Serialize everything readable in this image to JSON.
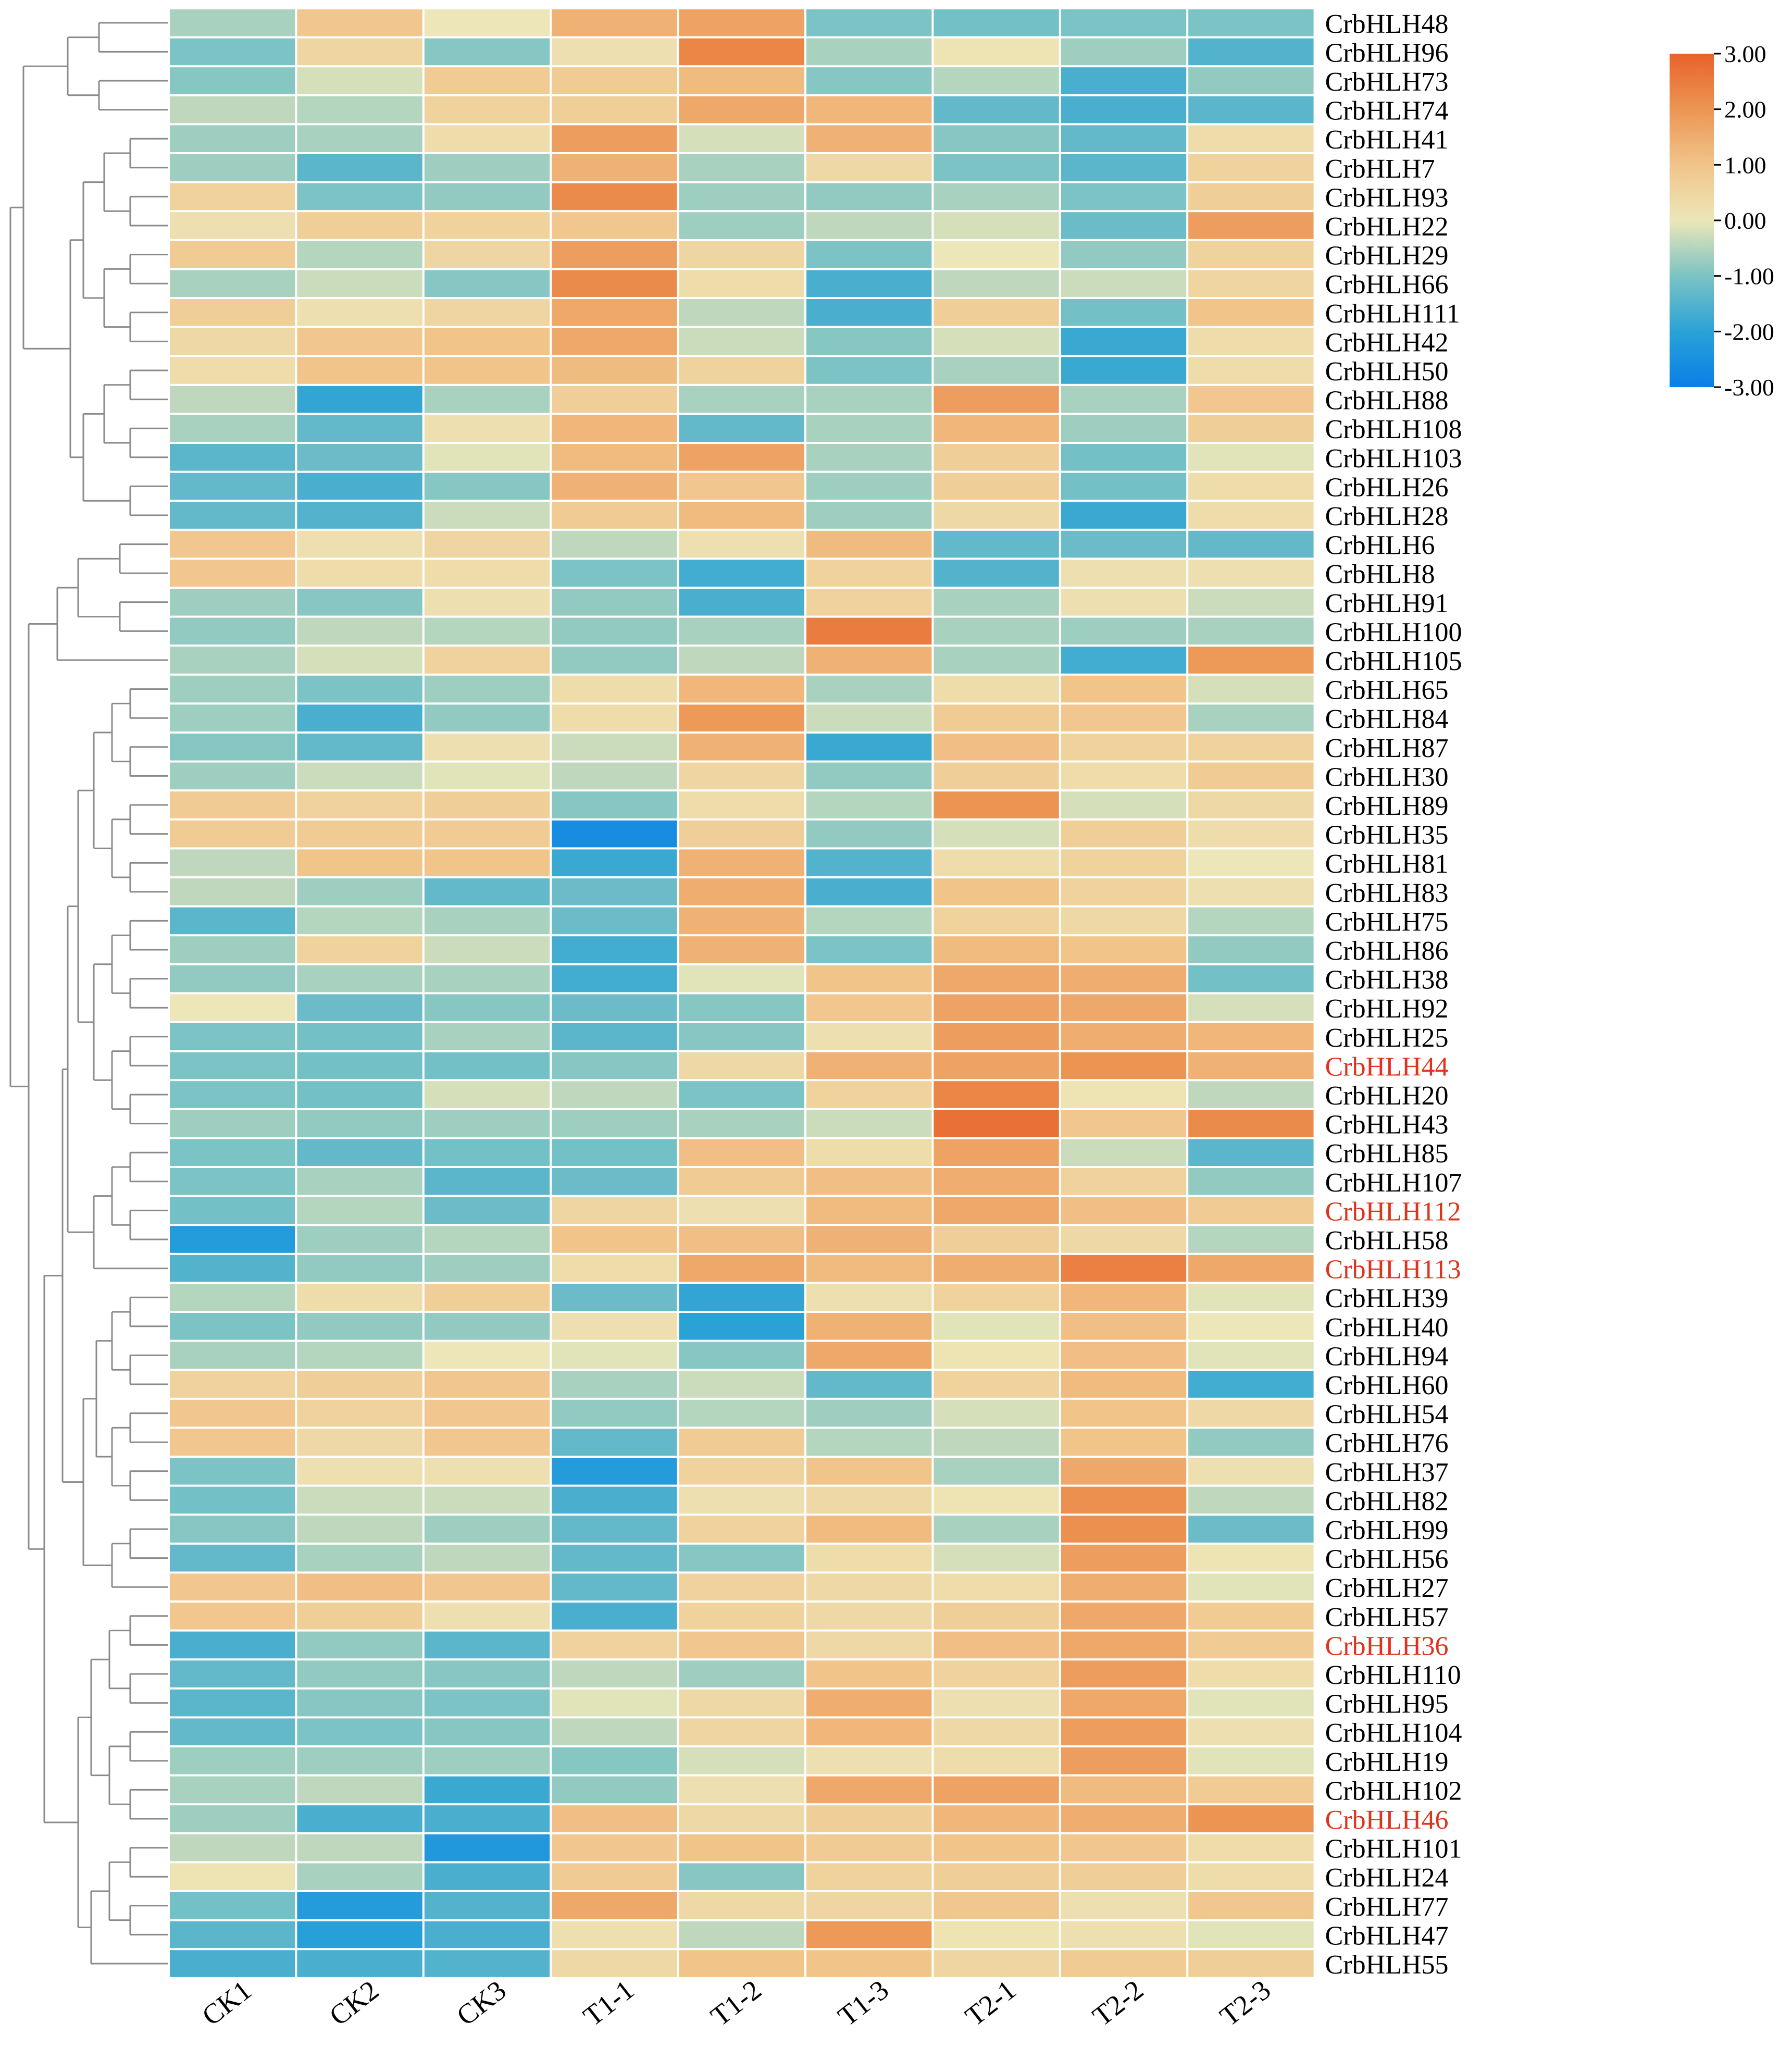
{
  "chart_data": {
    "type": "heatmap",
    "title": "",
    "columns": [
      "CK1",
      "CK2",
      "CK3",
      "T1-1",
      "T1-2",
      "T1-3",
      "T2-1",
      "T2-2",
      "T2-3"
    ],
    "rows": [
      {
        "gene": "CrbHLH48",
        "values": [
          -0.6,
          0.9,
          0.0,
          1.4,
          1.7,
          -1.0,
          -1.1,
          -1.0,
          -1.0
        ]
      },
      {
        "gene": "CrbHLH96",
        "values": [
          -1.0,
          0.5,
          -0.9,
          0.2,
          2.3,
          -0.6,
          0.1,
          -0.7,
          -1.5
        ]
      },
      {
        "gene": "CrbHLH73",
        "values": [
          -0.9,
          -0.2,
          0.8,
          0.8,
          1.2,
          -0.9,
          -0.5,
          -1.6,
          -0.8
        ]
      },
      {
        "gene": "CrbHLH74",
        "values": [
          -0.4,
          -0.5,
          0.6,
          0.7,
          1.6,
          1.3,
          -1.3,
          -1.6,
          -1.4
        ]
      },
      {
        "gene": "CrbHLH41",
        "values": [
          -0.7,
          -0.6,
          0.3,
          1.8,
          -0.2,
          1.4,
          -0.9,
          -1.3,
          0.3
        ]
      },
      {
        "gene": "CrbHLH7",
        "values": [
          -0.7,
          -1.4,
          -0.7,
          1.4,
          -0.6,
          0.4,
          -1.0,
          -1.4,
          0.6
        ]
      },
      {
        "gene": "CrbHLH93",
        "values": [
          0.6,
          -1.0,
          -0.8,
          2.2,
          -0.7,
          -0.8,
          -0.6,
          -1.0,
          0.7
        ]
      },
      {
        "gene": "CrbHLH22",
        "values": [
          0.2,
          0.7,
          0.6,
          0.9,
          -0.7,
          -0.4,
          -0.2,
          -1.2,
          1.8
        ]
      },
      {
        "gene": "CrbHLH29",
        "values": [
          0.8,
          -0.5,
          0.5,
          1.8,
          0.5,
          -1.0,
          0.0,
          -0.8,
          0.6
        ]
      },
      {
        "gene": "CrbHLH66",
        "values": [
          -0.6,
          -0.3,
          -0.9,
          2.2,
          0.3,
          -1.6,
          -0.4,
          -0.3,
          0.5
        ]
      },
      {
        "gene": "CrbHLH111",
        "values": [
          0.7,
          0.2,
          0.5,
          1.6,
          -0.4,
          -1.6,
          0.7,
          -1.1,
          1.0
        ]
      },
      {
        "gene": "CrbHLH42",
        "values": [
          0.4,
          0.9,
          1.0,
          1.6,
          -0.3,
          -0.9,
          -0.2,
          -1.8,
          0.3
        ]
      },
      {
        "gene": "CrbHLH50",
        "values": [
          0.3,
          1.0,
          1.0,
          1.2,
          0.6,
          -1.0,
          -0.6,
          -1.8,
          0.3
        ]
      },
      {
        "gene": "CrbHLH88",
        "values": [
          -0.4,
          -1.9,
          -0.6,
          0.7,
          -0.6,
          -0.6,
          1.8,
          -0.6,
          0.9
        ]
      },
      {
        "gene": "CrbHLH108",
        "values": [
          -0.6,
          -1.3,
          0.2,
          1.3,
          -1.3,
          -0.6,
          1.3,
          -0.7,
          0.7
        ]
      },
      {
        "gene": "CrbHLH103",
        "values": [
          -1.4,
          -1.2,
          -0.1,
          1.2,
          1.7,
          -0.6,
          0.7,
          -1.1,
          -0.1
        ]
      },
      {
        "gene": "CrbHLH26",
        "values": [
          -1.3,
          -1.6,
          -0.9,
          1.4,
          0.9,
          -0.7,
          0.7,
          -1.1,
          0.3
        ]
      },
      {
        "gene": "CrbHLH28",
        "values": [
          -1.3,
          -1.5,
          -0.3,
          0.8,
          1.2,
          -0.7,
          0.4,
          -1.8,
          0.3
        ]
      },
      {
        "gene": "CrbHLH6",
        "values": [
          0.9,
          0.2,
          0.5,
          -0.4,
          0.2,
          1.2,
          -1.3,
          -1.2,
          -1.3
        ]
      },
      {
        "gene": "CrbHLH8",
        "values": [
          0.9,
          0.3,
          0.3,
          -1.0,
          -1.7,
          0.6,
          -1.5,
          0.2,
          0.2
        ]
      },
      {
        "gene": "CrbHLH91",
        "values": [
          -0.7,
          -0.9,
          0.2,
          -0.8,
          -1.6,
          0.6,
          -0.6,
          0.2,
          -0.3
        ]
      },
      {
        "gene": "CrbHLH100",
        "values": [
          -0.8,
          -0.4,
          -0.5,
          -0.8,
          -0.6,
          2.5,
          -0.6,
          -0.7,
          -0.6
        ]
      },
      {
        "gene": "CrbHLH105",
        "values": [
          -0.6,
          -0.2,
          0.6,
          -0.8,
          -0.4,
          1.4,
          -0.6,
          -1.7,
          1.9
        ]
      },
      {
        "gene": "CrbHLH65",
        "values": [
          -0.7,
          -1.0,
          -0.7,
          0.3,
          1.3,
          -0.6,
          0.3,
          1.0,
          -0.2
        ]
      },
      {
        "gene": "CrbHLH84",
        "values": [
          -0.7,
          -1.6,
          -0.8,
          0.3,
          1.9,
          -0.3,
          0.8,
          0.9,
          -0.6
        ]
      },
      {
        "gene": "CrbHLH87",
        "values": [
          -0.9,
          -1.3,
          0.2,
          -0.3,
          1.4,
          -1.8,
          1.1,
          0.6,
          0.6
        ]
      },
      {
        "gene": "CrbHLH30",
        "values": [
          -0.7,
          -0.3,
          -0.1,
          -0.4,
          0.5,
          -0.8,
          0.7,
          0.3,
          0.8
        ]
      },
      {
        "gene": "CrbHLH89",
        "values": [
          0.8,
          0.6,
          0.7,
          -0.9,
          0.3,
          -0.5,
          2.0,
          -0.2,
          0.4
        ]
      },
      {
        "gene": "CrbHLH35",
        "values": [
          0.8,
          0.8,
          0.8,
          -2.6,
          0.7,
          -0.8,
          -0.2,
          0.7,
          0.3
        ]
      },
      {
        "gene": "CrbHLH81",
        "values": [
          -0.4,
          1.0,
          1.0,
          -1.8,
          1.4,
          -1.5,
          0.3,
          0.6,
          0.0
        ]
      },
      {
        "gene": "CrbHLH83",
        "values": [
          -0.4,
          -0.7,
          -1.3,
          -1.2,
          1.5,
          -1.6,
          1.0,
          0.6,
          0.2
        ]
      },
      {
        "gene": "CrbHLH75",
        "values": [
          -1.4,
          -0.5,
          -0.6,
          -1.2,
          1.4,
          -0.5,
          0.6,
          0.4,
          -0.5
        ]
      },
      {
        "gene": "CrbHLH86",
        "values": [
          -0.7,
          0.6,
          -0.3,
          -1.7,
          1.4,
          -1.0,
          1.2,
          1.0,
          -0.8
        ]
      },
      {
        "gene": "CrbHLH38",
        "values": [
          -0.8,
          -0.6,
          -0.6,
          -1.7,
          -0.1,
          1.0,
          1.6,
          1.5,
          -1.1
        ]
      },
      {
        "gene": "CrbHLH92",
        "values": [
          0.0,
          -1.2,
          -0.9,
          -1.2,
          -0.9,
          0.9,
          1.7,
          1.6,
          -0.2
        ]
      },
      {
        "gene": "CrbHLH25",
        "values": [
          -1.0,
          -1.1,
          -0.6,
          -1.4,
          -0.9,
          0.2,
          1.8,
          1.5,
          1.3
        ]
      },
      {
        "gene": "CrbHLH44",
        "values": [
          -1.0,
          -1.1,
          -1.1,
          -0.9,
          0.4,
          1.4,
          1.7,
          2.0,
          1.4
        ]
      },
      {
        "gene": "CrbHLH20",
        "values": [
          -1.0,
          -1.1,
          -0.2,
          -0.4,
          -1.0,
          0.6,
          2.3,
          0.1,
          -0.4
        ]
      },
      {
        "gene": "CrbHLH43",
        "values": [
          -0.7,
          -0.8,
          -0.7,
          -0.7,
          -0.6,
          -0.3,
          2.7,
          0.9,
          2.2
        ]
      },
      {
        "gene": "CrbHLH85",
        "values": [
          -1.0,
          -1.3,
          -1.1,
          -1.1,
          1.1,
          0.3,
          1.7,
          -0.3,
          -1.4
        ]
      },
      {
        "gene": "CrbHLH107",
        "values": [
          -1.0,
          -0.6,
          -1.4,
          -1.2,
          0.8,
          1.1,
          1.5,
          0.6,
          -0.8
        ]
      },
      {
        "gene": "CrbHLH112",
        "values": [
          -1.1,
          -0.5,
          -1.2,
          0.5,
          0.2,
          1.2,
          1.6,
          1.1,
          0.8
        ]
      },
      {
        "gene": "CrbHLH58",
        "values": [
          -2.2,
          -0.7,
          -0.5,
          1.0,
          1.1,
          1.4,
          0.7,
          0.4,
          -0.5
        ]
      },
      {
        "gene": "CrbHLH113",
        "values": [
          -1.5,
          -0.8,
          -0.7,
          0.3,
          1.6,
          1.2,
          1.5,
          2.4,
          1.6
        ]
      },
      {
        "gene": "CrbHLH39",
        "values": [
          -0.5,
          0.3,
          0.7,
          -1.2,
          -1.9,
          0.2,
          0.6,
          1.3,
          -0.1
        ]
      },
      {
        "gene": "CrbHLH40",
        "values": [
          -1.0,
          -0.8,
          -0.8,
          0.2,
          -2.0,
          1.4,
          -0.1,
          1.1,
          0.0
        ]
      },
      {
        "gene": "CrbHLH94",
        "values": [
          -0.6,
          -0.5,
          0.0,
          -0.1,
          -0.9,
          1.6,
          0.1,
          1.1,
          -0.1
        ]
      },
      {
        "gene": "CrbHLH60",
        "values": [
          0.6,
          0.7,
          0.9,
          -0.6,
          -0.3,
          -1.3,
          0.6,
          1.2,
          -1.7
        ]
      },
      {
        "gene": "CrbHLH54",
        "values": [
          0.9,
          0.6,
          0.9,
          -0.8,
          -0.5,
          -0.7,
          -0.2,
          1.0,
          0.4
        ]
      },
      {
        "gene": "CrbHLH76",
        "values": [
          0.9,
          0.4,
          0.9,
          -1.3,
          0.8,
          -0.5,
          -0.4,
          1.0,
          -0.8
        ]
      },
      {
        "gene": "CrbHLH37",
        "values": [
          -1.0,
          0.2,
          0.2,
          -2.2,
          0.6,
          1.0,
          -0.6,
          1.6,
          0.2
        ]
      },
      {
        "gene": "CrbHLH82",
        "values": [
          -1.1,
          -0.3,
          -0.3,
          -1.6,
          0.2,
          0.4,
          0.1,
          2.1,
          -0.4
        ]
      },
      {
        "gene": "CrbHLH99",
        "values": [
          -0.9,
          -0.4,
          -0.7,
          -1.3,
          0.6,
          1.2,
          -0.6,
          2.1,
          -1.2
        ]
      },
      {
        "gene": "CrbHLH56",
        "values": [
          -1.3,
          -0.6,
          -0.4,
          -1.3,
          -0.9,
          0.3,
          -0.2,
          1.8,
          0.1
        ]
      },
      {
        "gene": "CrbHLH27",
        "values": [
          0.9,
          1.1,
          0.9,
          -1.3,
          0.6,
          0.4,
          0.3,
          1.5,
          -0.1
        ]
      },
      {
        "gene": "CrbHLH57",
        "values": [
          0.9,
          0.7,
          0.2,
          -1.6,
          0.6,
          0.4,
          0.7,
          1.6,
          0.8
        ]
      },
      {
        "gene": "CrbHLH36",
        "values": [
          -1.6,
          -0.8,
          -1.4,
          0.6,
          0.9,
          0.4,
          1.1,
          1.6,
          0.8
        ]
      },
      {
        "gene": "CrbHLH110",
        "values": [
          -1.3,
          -0.8,
          -0.9,
          -0.4,
          -0.7,
          1.0,
          0.6,
          1.8,
          0.3
        ]
      },
      {
        "gene": "CrbHLH95",
        "values": [
          -1.4,
          -0.9,
          -1.0,
          -0.1,
          0.4,
          1.5,
          0.2,
          1.6,
          -0.1
        ]
      },
      {
        "gene": "CrbHLH104",
        "values": [
          -1.3,
          -1.0,
          -0.9,
          -0.4,
          0.5,
          1.3,
          0.4,
          1.8,
          0.2
        ]
      },
      {
        "gene": "CrbHLH19",
        "values": [
          -0.7,
          -0.7,
          -0.7,
          -0.9,
          -0.2,
          0.2,
          0.3,
          1.8,
          -0.1
        ]
      },
      {
        "gene": "CrbHLH102",
        "values": [
          -0.6,
          -0.4,
          -1.8,
          -0.8,
          0.2,
          1.6,
          1.7,
          1.2,
          0.8
        ]
      },
      {
        "gene": "CrbHLH46",
        "values": [
          -0.7,
          -1.6,
          -1.6,
          1.1,
          0.4,
          0.7,
          1.3,
          1.5,
          2.0
        ]
      },
      {
        "gene": "CrbHLH101",
        "values": [
          -0.4,
          -0.4,
          -2.3,
          0.9,
          1.0,
          0.8,
          1.0,
          0.9,
          0.3
        ]
      },
      {
        "gene": "CrbHLH24",
        "values": [
          0.1,
          -0.6,
          -1.6,
          0.8,
          -0.9,
          0.6,
          0.7,
          0.7,
          0.3
        ]
      },
      {
        "gene": "CrbHLH77",
        "values": [
          -1.1,
          -2.2,
          -1.5,
          1.6,
          0.4,
          0.5,
          0.9,
          0.2,
          0.9
        ]
      },
      {
        "gene": "CrbHLH47",
        "values": [
          -1.4,
          -2.1,
          -1.6,
          0.2,
          -0.4,
          1.9,
          0.1,
          0.2,
          -0.1
        ]
      },
      {
        "gene": "CrbHLH55",
        "values": [
          -1.6,
          -1.6,
          -1.5,
          0.4,
          1.0,
          1.0,
          0.5,
          0.8,
          0.7
        ]
      }
    ],
    "highlighted_genes": [
      "CrbHLH44",
      "CrbHLH112",
      "CrbHLH113",
      "CrbHLH36",
      "CrbHLH46"
    ],
    "colorbar": {
      "range": [
        -3.0,
        3.0
      ],
      "ticks": [
        "3.00",
        "2.00",
        "1.00",
        "0.00",
        "-1.00",
        "-2.00",
        "-3.00"
      ],
      "stops": [
        {
          "v": -3.0,
          "c": "#0a7fe8"
        },
        {
          "v": -2.0,
          "c": "#2aa2d6"
        },
        {
          "v": -1.0,
          "c": "#7bc3c4"
        },
        {
          "v": 0.0,
          "c": "#ece6b8"
        },
        {
          "v": 1.0,
          "c": "#f1c48a"
        },
        {
          "v": 2.0,
          "c": "#ec9553"
        },
        {
          "v": 3.0,
          "c": "#e8622a"
        }
      ]
    },
    "label_colors": {
      "normal": "#000000",
      "highlight": "#e0321c"
    },
    "dendrogram_color": "#8a8a8a"
  }
}
